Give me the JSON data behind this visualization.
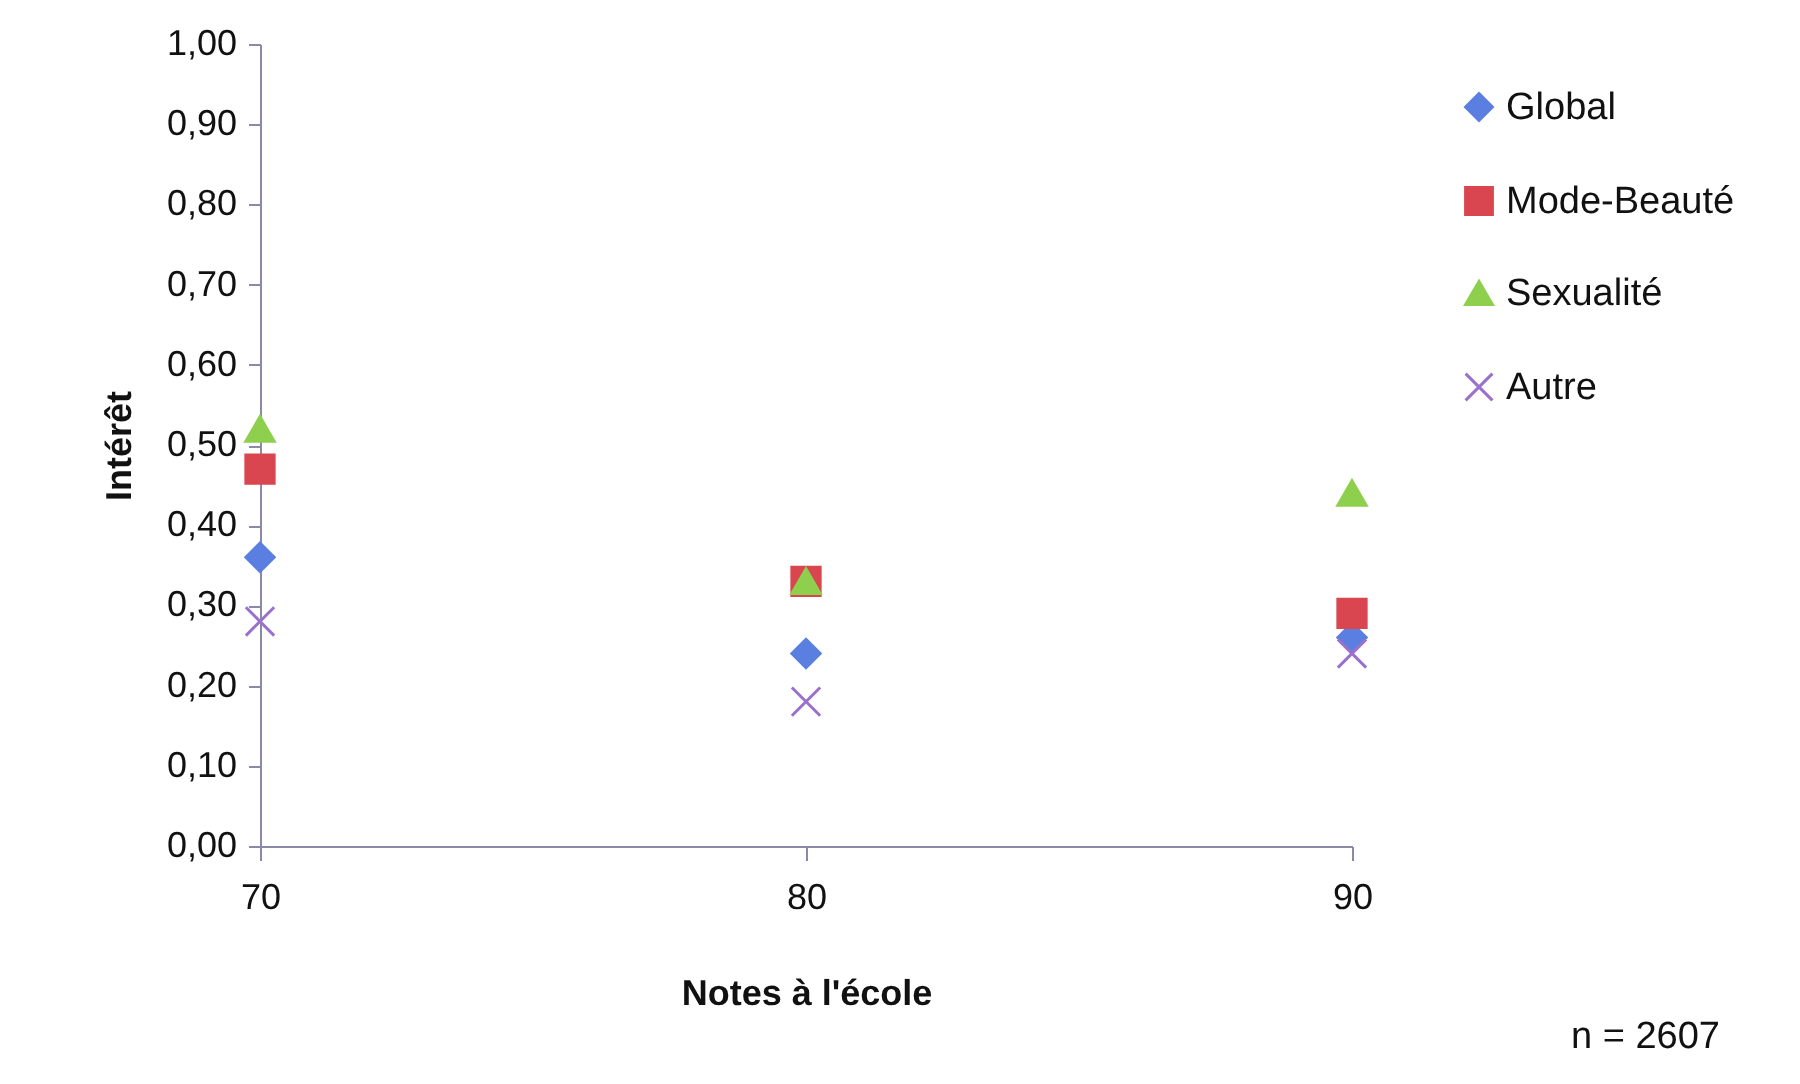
{
  "chart_data": {
    "type": "scatter",
    "xlabel": "Notes à l'école",
    "ylabel": "Intérêt",
    "x": [
      70,
      80,
      90
    ],
    "xlim": [
      70,
      90
    ],
    "xticks": [
      70,
      80,
      90
    ],
    "ylim": [
      0,
      1
    ],
    "yticks": [
      {
        "value": 0,
        "label": "0,00"
      },
      {
        "value": 0.1,
        "label": "0,10"
      },
      {
        "value": 0.2,
        "label": "0,20"
      },
      {
        "value": 0.3,
        "label": "0,30"
      },
      {
        "value": 0.4,
        "label": "0,40"
      },
      {
        "value": 0.5,
        "label": "0,50"
      },
      {
        "value": 0.6,
        "label": "0,60"
      },
      {
        "value": 0.7,
        "label": "0,70"
      },
      {
        "value": 0.8,
        "label": "0,80"
      },
      {
        "value": 0.9,
        "label": "0,90"
      },
      {
        "value": 1,
        "label": "1,00"
      }
    ],
    "grid": false,
    "legend": "right",
    "annotations": [
      "n = 2607"
    ],
    "series": [
      {
        "name": "Global",
        "color": "#5b7fe0",
        "marker": "diamond",
        "values": [
          0.36,
          0.24,
          0.26
        ]
      },
      {
        "name": "Mode-Beauté",
        "color": "#d9464f",
        "marker": "square",
        "values": [
          0.47,
          0.33,
          0.29
        ]
      },
      {
        "name": "Sexualité",
        "color": "#8ed04e",
        "marker": "triangle",
        "values": [
          0.52,
          0.33,
          0.44
        ]
      },
      {
        "name": "Autre",
        "color": "#9a72cc",
        "marker": "cross",
        "values": [
          0.28,
          0.18,
          0.24
        ]
      }
    ]
  }
}
